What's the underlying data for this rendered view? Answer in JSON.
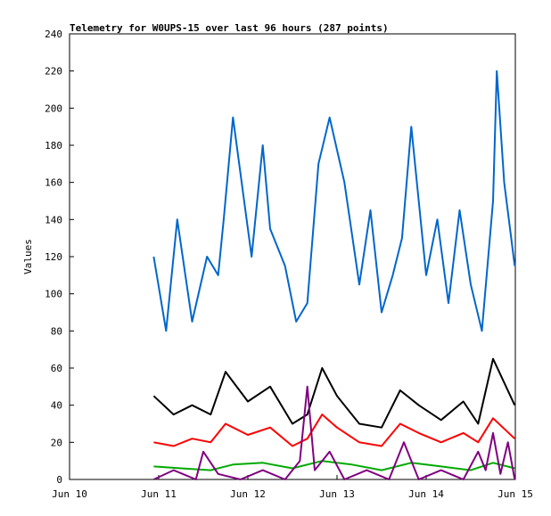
{
  "chart_data": {
    "type": "line",
    "title": "Telemetry for W0UPS-15 over last 96 hours (287 points)",
    "xlabel": "",
    "ylabel": "Values",
    "x_ticks": [
      "Jun 10",
      "Jun 11",
      "Jun 12",
      "Jun 13",
      "Jun 14",
      "Jun 15"
    ],
    "xlim": [
      "Jun 10 00:00",
      "Jun 15 00:00"
    ],
    "data_start": "Jun 10 22:40",
    "data_end": "Jun 14 23:50",
    "y_ticks": [
      0,
      20,
      40,
      60,
      80,
      100,
      120,
      140,
      160,
      180,
      200,
      220,
      240
    ],
    "ylim": [
      0,
      240
    ],
    "grid": false,
    "legend": "none",
    "series": [
      {
        "color": "#0066cc",
        "x": [
          "Jun 10 22:40",
          "Jun 11 02:00",
          "Jun 11 05:00",
          "Jun 11 09:00",
          "Jun 11 13:00",
          "Jun 11 16:00",
          "Jun 11 17:30",
          "Jun 11 20:00",
          "Jun 12 01:00",
          "Jun 12 04:00",
          "Jun 12 06:00",
          "Jun 12 10:00",
          "Jun 12 13:00",
          "Jun 12 16:00",
          "Jun 12 19:00",
          "Jun 12 22:00",
          "Jun 13 02:00",
          "Jun 13 06:00",
          "Jun 13 09:00",
          "Jun 13 12:00",
          "Jun 13 15:00",
          "Jun 13 17:30",
          "Jun 13 20:00",
          "Jun 14 00:00",
          "Jun 14 03:00",
          "Jun 14 06:00",
          "Jun 14 09:00",
          "Jun 14 12:00",
          "Jun 14 15:00",
          "Jun 14 18:00",
          "Jun 14 19:00",
          "Jun 14 21:00",
          "Jun 14 23:50"
        ],
        "y": [
          120,
          80,
          140,
          85,
          120,
          110,
          140,
          195,
          120,
          180,
          135,
          115,
          85,
          95,
          170,
          195,
          160,
          105,
          145,
          90,
          110,
          130,
          190,
          110,
          140,
          95,
          145,
          105,
          80,
          150,
          220,
          160,
          115
        ]
      },
      {
        "color": "#000000",
        "x": [
          "Jun 10 22:40",
          "Jun 11 04:00",
          "Jun 11 09:00",
          "Jun 11 14:00",
          "Jun 11 18:00",
          "Jun 12 00:00",
          "Jun 12 06:00",
          "Jun 12 12:00",
          "Jun 12 16:00",
          "Jun 12 20:00",
          "Jun 13 00:00",
          "Jun 13 06:00",
          "Jun 13 12:00",
          "Jun 13 17:00",
          "Jun 13 22:00",
          "Jun 14 04:00",
          "Jun 14 10:00",
          "Jun 14 14:00",
          "Jun 14 18:00",
          "Jun 14 23:50"
        ],
        "y": [
          45,
          35,
          40,
          35,
          58,
          42,
          50,
          30,
          35,
          60,
          45,
          30,
          28,
          48,
          40,
          32,
          42,
          30,
          65,
          40
        ]
      },
      {
        "color": "#ff0000",
        "x": [
          "Jun 10 22:40",
          "Jun 11 04:00",
          "Jun 11 09:00",
          "Jun 11 14:00",
          "Jun 11 18:00",
          "Jun 12 00:00",
          "Jun 12 06:00",
          "Jun 12 12:00",
          "Jun 12 16:00",
          "Jun 12 20:00",
          "Jun 13 00:00",
          "Jun 13 06:00",
          "Jun 13 12:00",
          "Jun 13 17:00",
          "Jun 13 22:00",
          "Jun 14 04:00",
          "Jun 14 10:00",
          "Jun 14 14:00",
          "Jun 14 18:00",
          "Jun 14 23:50"
        ],
        "y": [
          20,
          18,
          22,
          20,
          30,
          24,
          28,
          18,
          22,
          35,
          28,
          20,
          18,
          30,
          25,
          20,
          25,
          20,
          33,
          22
        ]
      },
      {
        "color": "#00aa00",
        "x": [
          "Jun 10 22:40",
          "Jun 11 06:00",
          "Jun 11 14:00",
          "Jun 11 20:00",
          "Jun 12 04:00",
          "Jun 12 12:00",
          "Jun 12 20:00",
          "Jun 13 04:00",
          "Jun 13 12:00",
          "Jun 13 20:00",
          "Jun 14 04:00",
          "Jun 14 12:00",
          "Jun 14 18:00",
          "Jun 14 23:50"
        ],
        "y": [
          7,
          6,
          5,
          8,
          9,
          6,
          10,
          8,
          5,
          9,
          7,
          5,
          9,
          6
        ]
      },
      {
        "color": "#800080",
        "x": [
          "Jun 10 22:40",
          "Jun 11 04:00",
          "Jun 11 10:00",
          "Jun 11 12:00",
          "Jun 11 16:00",
          "Jun 11 22:00",
          "Jun 12 04:00",
          "Jun 12 10:00",
          "Jun 12 14:00",
          "Jun 12 16:00",
          "Jun 12 18:00",
          "Jun 12 22:00",
          "Jun 13 02:00",
          "Jun 13 08:00",
          "Jun 13 14:00",
          "Jun 13 18:00",
          "Jun 13 22:00",
          "Jun 14 04:00",
          "Jun 14 10:00",
          "Jun 14 14:00",
          "Jun 14 16:00",
          "Jun 14 18:00",
          "Jun 14 20:00",
          "Jun 14 22:00",
          "Jun 14 23:50"
        ],
        "y": [
          0,
          5,
          0,
          15,
          3,
          0,
          5,
          0,
          10,
          50,
          5,
          15,
          0,
          5,
          0,
          20,
          0,
          5,
          0,
          15,
          5,
          25,
          3,
          20,
          0
        ]
      }
    ]
  }
}
